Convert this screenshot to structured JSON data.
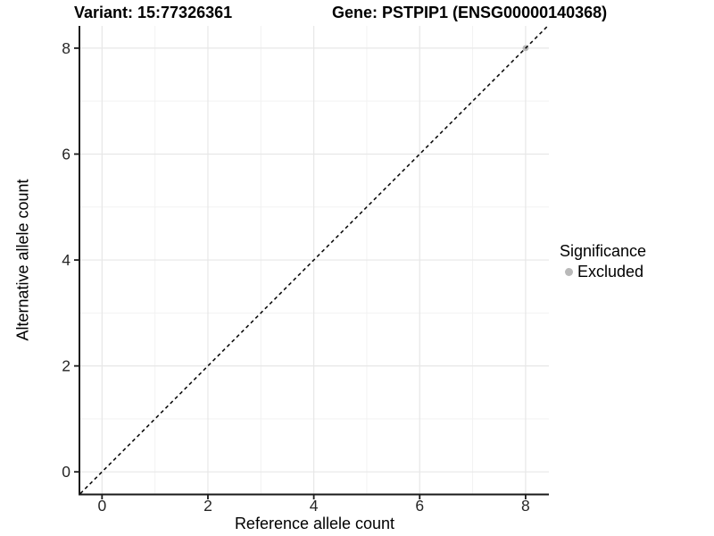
{
  "titles": {
    "variant": "Variant: 15:77326361",
    "gene": "Gene: PSTPIP1 (ENSG00000140368)"
  },
  "legend": {
    "title": "Significance",
    "items": [
      {
        "label": "Excluded",
        "color": "#b9b9b9"
      }
    ]
  },
  "chart_data": {
    "type": "scatter",
    "xlabel": "Reference allele count",
    "ylabel": "Alternative allele count",
    "xlim": [
      -0.41,
      8.44
    ],
    "ylim": [
      -0.41,
      8.42
    ],
    "x_ticks": [
      0,
      2,
      4,
      6,
      8
    ],
    "y_ticks": [
      0,
      2,
      4,
      6,
      8
    ],
    "x_minor_gridlines": [
      1,
      3,
      5,
      7
    ],
    "y_minor_gridlines": [
      1,
      3,
      5,
      7
    ],
    "grid": "major+minor",
    "legend_position": "right",
    "reference_line": {
      "slope": 1,
      "intercept": 0,
      "style": "dashed",
      "color": "#0d0d0d"
    },
    "series": [
      {
        "name": "Excluded",
        "color": "#b9b9b9",
        "points": [
          {
            "x": 8,
            "y": 8
          }
        ]
      }
    ],
    "colors": {
      "grid_major": "#e7e7e7",
      "grid_minor": "#f2f2f2",
      "axis": "#1a1a1a",
      "tick_label": "#262626",
      "background": "#ffffff"
    }
  }
}
